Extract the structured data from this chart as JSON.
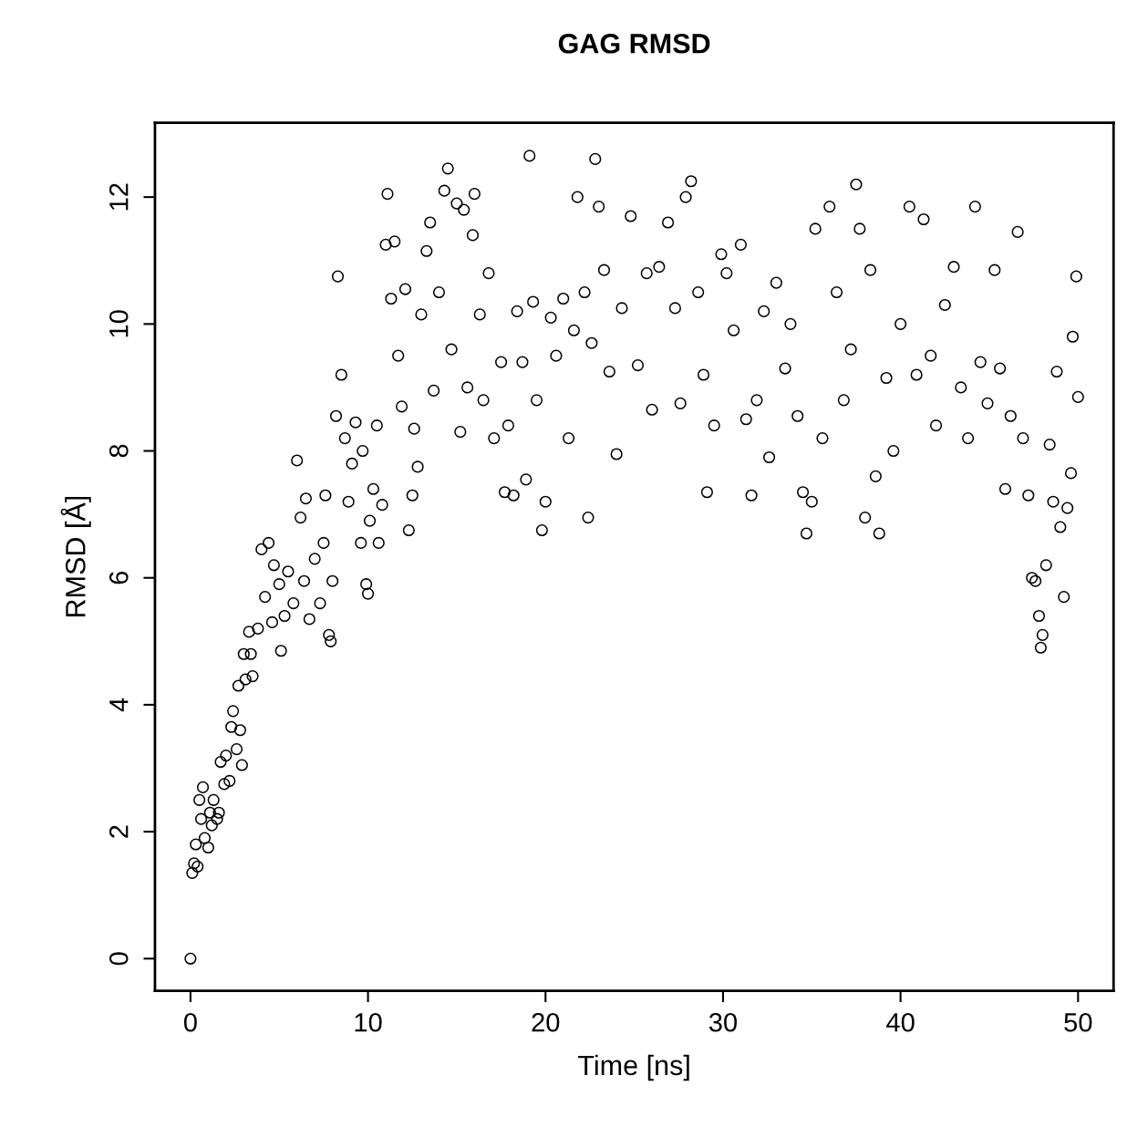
{
  "chart_data": {
    "type": "scatter",
    "title": "GAG RMSD",
    "xlabel": "Time [ns]",
    "ylabel": "RMSD [Å]",
    "xlim": [
      -2,
      52
    ],
    "ylim": [
      -0.506,
      13.17
    ],
    "xticks": [
      0,
      10,
      20,
      30,
      40,
      50
    ],
    "yticks": [
      0,
      2,
      4,
      6,
      8,
      10,
      12
    ],
    "grid": false,
    "legend": false,
    "marker": "circle",
    "series": [
      {
        "color": "#000000",
        "x": [
          0,
          0.1,
          0.2,
          0.3,
          0.4,
          0.5,
          0.6,
          0.7,
          0.8,
          1.0,
          1.1,
          1.2,
          1.3,
          1.5,
          1.6,
          1.7,
          1.9,
          2.0,
          2.2,
          2.3,
          2.4,
          2.6,
          2.7,
          2.8,
          2.9,
          3.0,
          3.1,
          3.3,
          3.4,
          3.5,
          3.8,
          4.0,
          4.2,
          4.4,
          4.6,
          4.7,
          5.0,
          5.1,
          5.3,
          5.5,
          5.8,
          6.0,
          6.2,
          6.4,
          6.5,
          6.7,
          7.0,
          7.3,
          7.5,
          7.6,
          7.8,
          7.9,
          8.0,
          8.2,
          8.3,
          8.5,
          8.7,
          8.9,
          9.1,
          9.3,
          9.6,
          9.7,
          9.9,
          10.0,
          10.1,
          10.3,
          10.5,
          10.6,
          10.8,
          11.0,
          11.1,
          11.3,
          11.5,
          11.7,
          11.9,
          12.1,
          12.3,
          12.5,
          12.6,
          12.8,
          13.0,
          13.3,
          13.5,
          13.7,
          14.0,
          14.3,
          14.5,
          14.7,
          15.0,
          15.2,
          15.4,
          15.6,
          15.9,
          16.0,
          16.3,
          16.5,
          16.8,
          17.1,
          17.5,
          17.7,
          17.9,
          18.2,
          18.4,
          18.7,
          18.9,
          19.1,
          19.3,
          19.5,
          19.8,
          20.0,
          20.3,
          20.6,
          21.0,
          21.3,
          21.6,
          21.8,
          22.2,
          22.4,
          22.6,
          22.8,
          23.0,
          23.3,
          23.6,
          24.0,
          24.3,
          24.8,
          25.2,
          25.7,
          26.0,
          26.4,
          26.9,
          27.3,
          27.6,
          27.9,
          28.2,
          28.6,
          28.9,
          29.1,
          29.5,
          29.9,
          30.2,
          30.6,
          31.0,
          31.3,
          31.6,
          31.9,
          32.3,
          32.6,
          33.0,
          33.5,
          33.8,
          34.2,
          34.5,
          34.7,
          35.0,
          35.2,
          35.6,
          36.0,
          36.4,
          36.8,
          37.2,
          37.5,
          37.7,
          38.0,
          38.3,
          38.6,
          38.8,
          39.2,
          39.6,
          40.0,
          40.5,
          40.9,
          41.3,
          41.7,
          42.0,
          42.5,
          43.0,
          43.4,
          43.8,
          44.2,
          44.5,
          44.9,
          45.3,
          45.6,
          45.9,
          46.2,
          46.6,
          46.9,
          47.2,
          47.4,
          47.6,
          47.8,
          47.9,
          48.0,
          48.2,
          48.4,
          48.6,
          48.8,
          49.0,
          49.2,
          49.4,
          49.6,
          49.7,
          49.9,
          50.0
        ],
        "values": [
          0,
          1.35,
          1.5,
          1.8,
          1.45,
          2.5,
          2.2,
          2.7,
          1.9,
          1.75,
          2.3,
          2.1,
          2.5,
          2.2,
          2.3,
          3.1,
          2.75,
          3.2,
          2.8,
          3.65,
          3.9,
          3.3,
          4.3,
          3.6,
          3.05,
          4.8,
          4.4,
          5.15,
          4.8,
          4.45,
          5.2,
          6.45,
          5.7,
          6.55,
          5.3,
          6.2,
          5.9,
          4.85,
          5.4,
          6.1,
          5.6,
          7.85,
          6.95,
          5.95,
          7.25,
          5.35,
          6.3,
          5.6,
          6.55,
          7.3,
          5.1,
          5.0,
          5.95,
          8.55,
          10.75,
          9.2,
          8.2,
          7.2,
          7.8,
          8.45,
          6.55,
          8.0,
          5.9,
          5.75,
          6.9,
          7.4,
          8.4,
          6.55,
          7.15,
          11.25,
          12.05,
          10.4,
          11.3,
          9.5,
          8.7,
          10.55,
          6.75,
          7.3,
          8.35,
          7.75,
          10.15,
          11.15,
          11.6,
          8.95,
          10.5,
          12.1,
          12.45,
          9.6,
          11.9,
          8.3,
          11.8,
          9.0,
          11.4,
          12.05,
          10.15,
          8.8,
          10.8,
          8.2,
          9.4,
          7.35,
          8.4,
          7.3,
          10.2,
          9.4,
          7.55,
          12.65,
          10.35,
          8.8,
          6.75,
          7.2,
          10.1,
          9.5,
          10.4,
          8.2,
          9.9,
          12.0,
          10.5,
          6.95,
          9.7,
          12.6,
          11.85,
          10.85,
          9.25,
          7.95,
          10.25,
          11.7,
          9.35,
          10.8,
          8.65,
          10.9,
          11.6,
          10.25,
          8.75,
          12.0,
          12.25,
          10.5,
          9.2,
          7.35,
          8.4,
          11.1,
          10.8,
          9.9,
          11.25,
          8.5,
          7.3,
          8.8,
          10.2,
          7.9,
          10.65,
          9.3,
          10.0,
          8.55,
          7.35,
          6.7,
          7.2,
          11.5,
          8.2,
          11.85,
          10.5,
          8.8,
          9.6,
          12.2,
          11.5,
          6.95,
          10.85,
          7.6,
          6.7,
          9.15,
          8.0,
          10.0,
          11.85,
          9.2,
          11.65,
          9.5,
          8.4,
          10.3,
          10.9,
          9.0,
          8.2,
          11.85,
          9.4,
          8.75,
          10.85,
          9.3,
          7.4,
          8.55,
          11.45,
          8.2,
          7.3,
          6.0,
          5.95,
          5.4,
          4.9,
          5.1,
          6.2,
          8.1,
          7.2,
          9.25,
          6.8,
          5.7,
          7.1,
          7.65,
          9.8,
          10.75,
          8.85
        ]
      }
    ]
  }
}
